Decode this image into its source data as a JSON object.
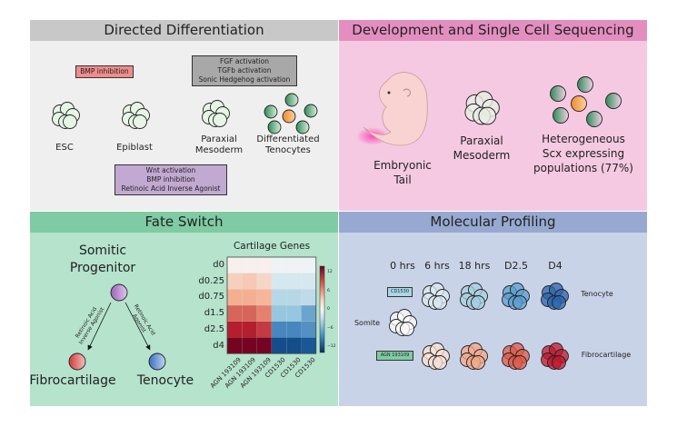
{
  "panels": {
    "directed": {
      "title": "Directed Differentiation",
      "bmp_box": "BMP inhibition",
      "grey_box": [
        "FGF activation",
        "TGFb activation",
        "Sonic Hedgehog activation"
      ],
      "purple_box": [
        "Wnt activation",
        "BMP inhibition",
        "Retinoic Acid Inverse Agonist"
      ],
      "stages": [
        "ESC",
        "Epiblast",
        "Paraxial",
        "Mesoderm",
        "Differentiated",
        "Tenocytes"
      ],
      "colors": {
        "header": "#c8c8c8",
        "bg": "#efefef",
        "bmp": "#f08c8c",
        "grey": "#a8a8a8",
        "purple": "#c2a9d1"
      }
    },
    "development": {
      "title": "Development and Single Cell Sequencing",
      "labels": [
        "Embryonic",
        "Tail",
        "Paraxial",
        "Mesoderm",
        "Heterogeneous",
        "Scx expressing",
        "populations (77%)"
      ],
      "colors": {
        "header": "#e48ec0",
        "bg": "#f5c9e2"
      }
    },
    "fate": {
      "title": "Fate Switch",
      "progenitor": [
        "Somitic",
        "Progenitor"
      ],
      "left_arrow": [
        "Retinoic Acid",
        "Inverse Agonist"
      ],
      "right_arrow": [
        "Retinoic Acid",
        "Agonist"
      ],
      "outcomes": [
        "Fibrocartilage",
        "Tenocyte"
      ],
      "colors": {
        "header": "#7fcba3",
        "bg": "#b5e3cc"
      }
    },
    "molecular": {
      "title": "Molecular Profiling",
      "timepoints": [
        "0 hrs",
        "6 hrs",
        "18 hrs",
        "D2.5",
        "D4"
      ],
      "cd_box": "CD1530",
      "agn_box": "AGN 193109",
      "somite": "Somite",
      "tenocyte": "Tenocyte",
      "fibrocartilage": "Fibrocartilage",
      "colors": {
        "header": "#97a9d1",
        "bg": "#c9d3e8"
      }
    }
  },
  "chart_data": {
    "type": "heatmap",
    "title": "Cartilage Genes",
    "rows": [
      "d0",
      "d0.25",
      "d0.75",
      "d1.5",
      "d2.5",
      "d4"
    ],
    "columns": [
      "AGN 193109",
      "AGN 193109",
      "AGN 193109",
      "CD1530",
      "CD1530",
      "CD1530"
    ],
    "values": [
      [
        0.5,
        0.5,
        0.5,
        -0.5,
        -0.5,
        -0.5
      ],
      [
        3,
        3.5,
        2.5,
        -2,
        -2,
        -2
      ],
      [
        5.5,
        5.5,
        5,
        -4,
        -4,
        -3.5
      ],
      [
        8.5,
        8.5,
        7.5,
        -6,
        -6,
        -8
      ],
      [
        11,
        11,
        10,
        -9.5,
        -9.5,
        -9
      ],
      [
        13.5,
        13.5,
        13.5,
        -12.5,
        -12.5,
        -12
      ]
    ],
    "colorbar_ticks": [
      "12",
      "6",
      "0",
      "−6",
      "−12"
    ],
    "vlim": [
      -14,
      14
    ],
    "colormap": "RdBu_r"
  }
}
